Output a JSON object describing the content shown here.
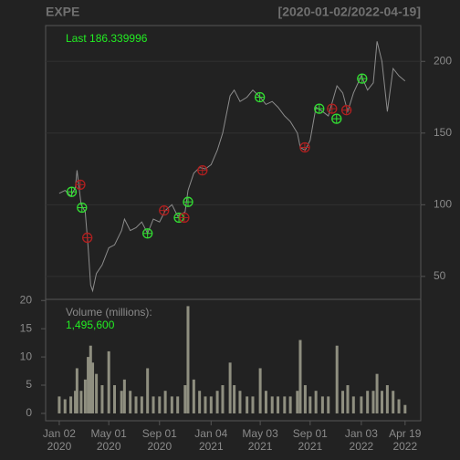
{
  "chart_data": {
    "type": "line",
    "title": "EXPE",
    "subtitle": "[2020-01-02/2022-04-19]",
    "last_label": "Last 186.339996",
    "color": "#8c8c8c",
    "x": [
      "2020-01-02",
      "2020-01-16",
      "2020-01-30",
      "2020-02-10",
      "2020-02-14",
      "2020-02-24",
      "2020-03-05",
      "2020-03-12",
      "2020-03-18",
      "2020-03-23",
      "2020-04-01",
      "2020-04-15",
      "2020-05-01",
      "2020-05-15",
      "2020-06-01",
      "2020-06-08",
      "2020-06-22",
      "2020-07-06",
      "2020-07-20",
      "2020-08-03",
      "2020-08-17",
      "2020-09-01",
      "2020-09-15",
      "2020-10-01",
      "2020-10-15",
      "2020-11-02",
      "2020-11-09",
      "2020-11-23",
      "2020-12-07",
      "2020-12-21",
      "2021-01-04",
      "2021-01-19",
      "2021-02-01",
      "2021-02-19",
      "2021-03-01",
      "2021-03-15",
      "2021-04-01",
      "2021-04-15",
      "2021-05-03",
      "2021-05-17",
      "2021-06-01",
      "2021-06-15",
      "2021-07-01",
      "2021-07-15",
      "2021-08-01",
      "2021-08-08",
      "2021-08-20",
      "2021-09-01",
      "2021-09-15",
      "2021-10-01",
      "2021-10-15",
      "2021-11-05",
      "2021-11-19",
      "2021-12-01",
      "2021-12-15",
      "2022-01-03",
      "2022-01-18",
      "2022-02-01",
      "2022-02-10",
      "2022-02-22",
      "2022-03-07",
      "2022-03-21",
      "2022-04-04",
      "2022-04-19"
    ],
    "values": [
      108,
      110,
      106,
      112,
      124,
      100,
      95,
      70,
      44,
      40,
      52,
      58,
      70,
      72,
      82,
      90,
      82,
      84,
      88,
      80,
      90,
      88,
      96,
      100,
      92,
      95,
      110,
      122,
      126,
      125,
      128,
      138,
      150,
      176,
      180,
      172,
      175,
      180,
      175,
      170,
      172,
      168,
      162,
      158,
      150,
      140,
      138,
      145,
      168,
      165,
      162,
      183,
      178,
      165,
      178,
      190,
      180,
      185,
      214,
      200,
      165,
      195,
      190,
      186.34
    ],
    "markers": [
      {
        "color": "#33dd33",
        "x": [
          "2020-02-01",
          "2020-02-26",
          "2020-08-03",
          "2020-10-18",
          "2020-11-09",
          "2021-05-02",
          "2021-09-23",
          "2021-11-04",
          "2022-01-05"
        ],
        "values": [
          109,
          98,
          80,
          91,
          102,
          175,
          167,
          160,
          188
        ]
      },
      {
        "color": "#b02020",
        "x": [
          "2020-02-22",
          "2020-03-10",
          "2020-09-12",
          "2020-10-31",
          "2020-12-14",
          "2021-08-19",
          "2021-10-24",
          "2021-11-28"
        ],
        "values": [
          114,
          77,
          96,
          91,
          124,
          140,
          167,
          166
        ]
      }
    ],
    "xlim": [
      "2019-11-30",
      "2022-05-27"
    ],
    "xticks": [
      {
        "value": "2020-01-02",
        "label": [
          "Jan 02",
          "2020"
        ]
      },
      {
        "value": "2020-05-01",
        "label": [
          "May 01",
          "2020"
        ]
      },
      {
        "value": "2020-09-01",
        "label": [
          "Sep 01",
          "2020"
        ]
      },
      {
        "value": "2021-01-04",
        "label": [
          "Jan 04",
          "2021"
        ]
      },
      {
        "value": "2021-05-03",
        "label": [
          "May 03",
          "2021"
        ]
      },
      {
        "value": "2021-09-01",
        "label": [
          "Sep 01",
          "2021"
        ]
      },
      {
        "value": "2022-01-03",
        "label": [
          "Jan 03",
          "2022"
        ]
      },
      {
        "value": "2022-04-19",
        "label": [
          "Apr 19",
          "2022"
        ]
      }
    ],
    "ylim": [
      34,
      225
    ],
    "yticks": [
      50,
      100,
      150,
      200
    ],
    "grid": true,
    "volume": {
      "title": "Volume (millions):",
      "value_label": "1,495,600",
      "color": "#8f8f80",
      "values": [
        3,
        2.5,
        3,
        4,
        8,
        4,
        6,
        10,
        12,
        9,
        7,
        5,
        11,
        5,
        4,
        6,
        4,
        3,
        3,
        8,
        3,
        3,
        4,
        3,
        3,
        5,
        19,
        6,
        4,
        3,
        3,
        4,
        5,
        9,
        5,
        4,
        3,
        3,
        8,
        4,
        3,
        3,
        3,
        3,
        4,
        13,
        5,
        3,
        4,
        3,
        3,
        12,
        4,
        5,
        3,
        3,
        4,
        4,
        7,
        4,
        5,
        4,
        2.5,
        1.4956
      ],
      "ylim": [
        -1.3,
        20.2
      ],
      "yticks": [
        0,
        5,
        10,
        15,
        20
      ]
    }
  }
}
